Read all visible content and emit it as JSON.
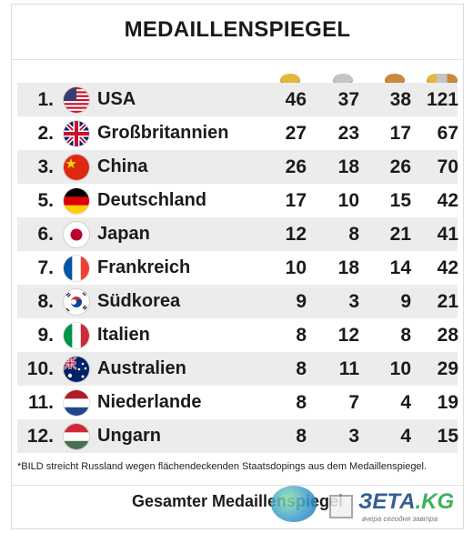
{
  "title": "MEDAILLENSPIEGEL",
  "medal_icons": [
    {
      "name": "gold-medal-icon",
      "color": "#e3b73b"
    },
    {
      "name": "silver-medal-icon",
      "color": "#c4c4c4"
    },
    {
      "name": "bronze-medal-icon",
      "color": "#c98a3d"
    },
    {
      "name": "total-medals-icon",
      "color": "#dcb45a"
    }
  ],
  "rows": [
    {
      "rank": "1.",
      "country": "USA",
      "flag": "usa-flag-icon",
      "gold": "46",
      "silver": "37",
      "bronze": "38",
      "total": "121"
    },
    {
      "rank": "2.",
      "country": "Großbritannien",
      "flag": "great-britain-flag-icon",
      "gold": "27",
      "silver": "23",
      "bronze": "17",
      "total": "67"
    },
    {
      "rank": "3.",
      "country": "China",
      "flag": "china-flag-icon",
      "gold": "26",
      "silver": "18",
      "bronze": "26",
      "total": "70"
    },
    {
      "rank": "5.",
      "country": "Deutschland",
      "flag": "germany-flag-icon",
      "gold": "17",
      "silver": "10",
      "bronze": "15",
      "total": "42"
    },
    {
      "rank": "6.",
      "country": "Japan",
      "flag": "japan-flag-icon",
      "gold": "12",
      "silver": "8",
      "bronze": "21",
      "total": "41"
    },
    {
      "rank": "7.",
      "country": "Frankreich",
      "flag": "france-flag-icon",
      "gold": "10",
      "silver": "18",
      "bronze": "14",
      "total": "42"
    },
    {
      "rank": "8.",
      "country": "Südkorea",
      "flag": "south-korea-flag-icon",
      "gold": "9",
      "silver": "3",
      "bronze": "9",
      "total": "21"
    },
    {
      "rank": "9.",
      "country": "Italien",
      "flag": "italy-flag-icon",
      "gold": "8",
      "silver": "12",
      "bronze": "8",
      "total": "28"
    },
    {
      "rank": "10.",
      "country": "Australien",
      "flag": "australia-flag-icon",
      "gold": "8",
      "silver": "11",
      "bronze": "10",
      "total": "29"
    },
    {
      "rank": "11.",
      "country": "Niederlande",
      "flag": "netherlands-flag-icon",
      "gold": "8",
      "silver": "7",
      "bronze": "4",
      "total": "19"
    },
    {
      "rank": "12.",
      "country": "Ungarn",
      "flag": "hungary-flag-icon",
      "gold": "8",
      "silver": "3",
      "bronze": "4",
      "total": "15"
    }
  ],
  "footnote": "*BILD streicht Russland wegen flächendeckenden Staatsdopings aus dem Medaillenspiegel.",
  "footer_title": "Gesamter Medaillenspiegel",
  "watermark": {
    "brand": "ЗЕТА",
    "tld": ".KG",
    "tagline": "вчера сегодня завтра"
  }
}
